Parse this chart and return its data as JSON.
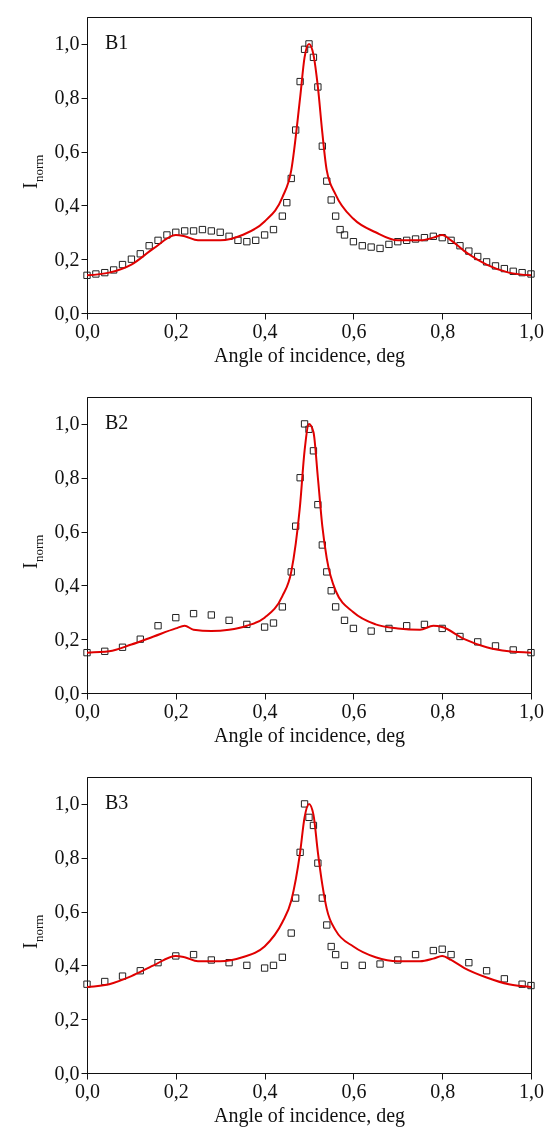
{
  "chart_data": [
    {
      "type": "scatter",
      "xlabel": "Angle of incidence, deg",
      "ylabel": "I$_{norm}$",
      "annotations": [
        "B1"
      ],
      "grid": false,
      "xlim": [
        0,
        1
      ],
      "xticks": [
        {
          "value": 0,
          "label": "0,0"
        },
        {
          "value": 0.2,
          "label": "0,2"
        },
        {
          "value": 0.4,
          "label": "0,4"
        },
        {
          "value": 0.6,
          "label": "0,6"
        },
        {
          "value": 0.8,
          "label": "0,8"
        },
        {
          "value": 1,
          "label": "1,0"
        }
      ],
      "ylim": [
        0,
        1.1
      ],
      "yticks": [
        {
          "value": 0,
          "label": "0,0"
        },
        {
          "value": 0.2,
          "label": "0,2"
        },
        {
          "value": 0.4,
          "label": "0,4"
        },
        {
          "value": 0.6,
          "label": "0,6"
        },
        {
          "value": 0.8,
          "label": "0,8"
        },
        {
          "value": 1,
          "label": "1,0"
        }
      ],
      "series": [
        {
          "marker": "square",
          "color": "#222222",
          "x": [
            0,
            0.02,
            0.04,
            0.06,
            0.08,
            0.1,
            0.12,
            0.14,
            0.16,
            0.18,
            0.2,
            0.22,
            0.24,
            0.26,
            0.28,
            0.3,
            0.32,
            0.34,
            0.36,
            0.38,
            0.4,
            0.42,
            0.44,
            0.45,
            0.46,
            0.47,
            0.48,
            0.49,
            0.5,
            0.51,
            0.52,
            0.53,
            0.54,
            0.55,
            0.56,
            0.57,
            0.58,
            0.6,
            0.62,
            0.64,
            0.66,
            0.68,
            0.7,
            0.72,
            0.74,
            0.76,
            0.78,
            0.8,
            0.82,
            0.84,
            0.86,
            0.88,
            0.9,
            0.92,
            0.94,
            0.96,
            0.98,
            1.0
          ],
          "values": [
            0.14,
            0.145,
            0.15,
            0.16,
            0.18,
            0.2,
            0.22,
            0.25,
            0.27,
            0.29,
            0.3,
            0.305,
            0.305,
            0.31,
            0.305,
            0.3,
            0.285,
            0.27,
            0.265,
            0.27,
            0.29,
            0.31,
            0.36,
            0.41,
            0.5,
            0.68,
            0.86,
            0.98,
            1.0,
            0.95,
            0.84,
            0.62,
            0.49,
            0.42,
            0.36,
            0.31,
            0.29,
            0.265,
            0.25,
            0.245,
            0.24,
            0.255,
            0.265,
            0.27,
            0.275,
            0.28,
            0.285,
            0.28,
            0.27,
            0.25,
            0.23,
            0.21,
            0.19,
            0.175,
            0.165,
            0.155,
            0.15,
            0.145
          ]
        },
        {
          "type": "line",
          "color": "#e00000",
          "x": [
            0,
            0.05,
            0.1,
            0.15,
            0.2,
            0.22,
            0.25,
            0.3,
            0.35,
            0.4,
            0.44,
            0.46,
            0.48,
            0.49,
            0.5,
            0.51,
            0.52,
            0.53,
            0.54,
            0.56,
            0.6,
            0.65,
            0.7,
            0.75,
            0.78,
            0.8,
            0.82,
            0.85,
            0.9,
            0.95,
            1.0
          ],
          "values": [
            0.14,
            0.15,
            0.18,
            0.24,
            0.29,
            0.285,
            0.27,
            0.27,
            0.29,
            0.34,
            0.43,
            0.53,
            0.8,
            0.95,
            1.0,
            0.96,
            0.84,
            0.67,
            0.53,
            0.44,
            0.35,
            0.3,
            0.27,
            0.27,
            0.28,
            0.29,
            0.27,
            0.23,
            0.18,
            0.15,
            0.14
          ]
        }
      ]
    },
    {
      "type": "scatter",
      "xlabel": "Angle of incidence, deg",
      "ylabel": "I$_{norm}$",
      "annotations": [
        "B2"
      ],
      "grid": false,
      "xlim": [
        0,
        1
      ],
      "xticks": [
        {
          "value": 0,
          "label": "0,0"
        },
        {
          "value": 0.2,
          "label": "0,2"
        },
        {
          "value": 0.4,
          "label": "0,4"
        },
        {
          "value": 0.6,
          "label": "0,6"
        },
        {
          "value": 0.8,
          "label": "0,8"
        },
        {
          "value": 1,
          "label": "1,0"
        }
      ],
      "ylim": [
        0,
        1.1
      ],
      "yticks": [
        {
          "value": 0,
          "label": "0,0"
        },
        {
          "value": 0.2,
          "label": "0,2"
        },
        {
          "value": 0.4,
          "label": "0,4"
        },
        {
          "value": 0.6,
          "label": "0,6"
        },
        {
          "value": 0.8,
          "label": "0,8"
        },
        {
          "value": 1,
          "label": "1,0"
        }
      ],
      "series": [
        {
          "marker": "square",
          "color": "#222222",
          "x": [
            0,
            0.04,
            0.08,
            0.12,
            0.16,
            0.2,
            0.24,
            0.28,
            0.32,
            0.36,
            0.4,
            0.42,
            0.44,
            0.46,
            0.47,
            0.48,
            0.49,
            0.5,
            0.51,
            0.52,
            0.53,
            0.54,
            0.55,
            0.56,
            0.58,
            0.6,
            0.64,
            0.68,
            0.72,
            0.76,
            0.8,
            0.84,
            0.88,
            0.92,
            0.96,
            1.0
          ],
          "values": [
            0.15,
            0.155,
            0.17,
            0.2,
            0.25,
            0.28,
            0.295,
            0.29,
            0.27,
            0.255,
            0.245,
            0.26,
            0.32,
            0.45,
            0.62,
            0.8,
            1.0,
            0.98,
            0.9,
            0.7,
            0.55,
            0.45,
            0.38,
            0.32,
            0.27,
            0.24,
            0.23,
            0.24,
            0.25,
            0.255,
            0.24,
            0.21,
            0.19,
            0.175,
            0.16,
            0.15
          ]
        },
        {
          "type": "line",
          "color": "#e00000",
          "x": [
            0,
            0.05,
            0.1,
            0.15,
            0.2,
            0.22,
            0.24,
            0.28,
            0.32,
            0.36,
            0.4,
            0.44,
            0.46,
            0.48,
            0.49,
            0.5,
            0.51,
            0.52,
            0.53,
            0.54,
            0.56,
            0.6,
            0.65,
            0.7,
            0.75,
            0.78,
            0.8,
            0.85,
            0.9,
            0.95,
            1.0
          ],
          "values": [
            0.15,
            0.155,
            0.18,
            0.21,
            0.24,
            0.25,
            0.235,
            0.23,
            0.235,
            0.25,
            0.28,
            0.36,
            0.45,
            0.7,
            0.9,
            1.0,
            0.97,
            0.8,
            0.62,
            0.5,
            0.38,
            0.3,
            0.255,
            0.24,
            0.235,
            0.25,
            0.245,
            0.2,
            0.17,
            0.155,
            0.15
          ]
        }
      ]
    },
    {
      "type": "scatter",
      "xlabel": "Angle of incidence, deg",
      "ylabel": "I$_{norm}$",
      "annotations": [
        "B3"
      ],
      "grid": false,
      "xlim": [
        0,
        1
      ],
      "xticks": [
        {
          "value": 0,
          "label": "0,0"
        },
        {
          "value": 0.2,
          "label": "0,2"
        },
        {
          "value": 0.4,
          "label": "0,4"
        },
        {
          "value": 0.6,
          "label": "0,6"
        },
        {
          "value": 0.8,
          "label": "0,8"
        },
        {
          "value": 1,
          "label": "1,0"
        }
      ],
      "ylim": [
        0,
        1.1
      ],
      "yticks": [
        {
          "value": 0,
          "label": "0,0"
        },
        {
          "value": 0.2,
          "label": "0,2"
        },
        {
          "value": 0.4,
          "label": "0,4"
        },
        {
          "value": 0.6,
          "label": "0,6"
        },
        {
          "value": 0.8,
          "label": "0,8"
        },
        {
          "value": 1,
          "label": "1,0"
        }
      ],
      "series": [
        {
          "marker": "square",
          "color": "#222222",
          "x": [
            0,
            0.04,
            0.08,
            0.12,
            0.16,
            0.2,
            0.24,
            0.28,
            0.32,
            0.36,
            0.4,
            0.42,
            0.44,
            0.46,
            0.47,
            0.48,
            0.49,
            0.5,
            0.51,
            0.52,
            0.53,
            0.54,
            0.55,
            0.56,
            0.58,
            0.62,
            0.66,
            0.7,
            0.74,
            0.78,
            0.8,
            0.82,
            0.86,
            0.9,
            0.94,
            0.98,
            1.0
          ],
          "values": [
            0.33,
            0.34,
            0.36,
            0.38,
            0.41,
            0.435,
            0.44,
            0.42,
            0.41,
            0.4,
            0.39,
            0.4,
            0.43,
            0.52,
            0.65,
            0.82,
            1.0,
            0.95,
            0.92,
            0.78,
            0.65,
            0.55,
            0.47,
            0.44,
            0.4,
            0.4,
            0.405,
            0.42,
            0.44,
            0.455,
            0.46,
            0.44,
            0.41,
            0.38,
            0.35,
            0.33,
            0.325
          ]
        },
        {
          "type": "line",
          "color": "#e00000",
          "x": [
            0,
            0.05,
            0.1,
            0.15,
            0.2,
            0.22,
            0.25,
            0.3,
            0.35,
            0.4,
            0.44,
            0.46,
            0.48,
            0.49,
            0.5,
            0.51,
            0.52,
            0.53,
            0.54,
            0.56,
            0.6,
            0.65,
            0.7,
            0.75,
            0.78,
            0.8,
            0.82,
            0.85,
            0.9,
            0.95,
            1.0
          ],
          "values": [
            0.32,
            0.33,
            0.36,
            0.4,
            0.435,
            0.43,
            0.415,
            0.415,
            0.43,
            0.47,
            0.56,
            0.64,
            0.82,
            0.95,
            1.0,
            0.96,
            0.82,
            0.7,
            0.61,
            0.53,
            0.47,
            0.43,
            0.415,
            0.415,
            0.425,
            0.435,
            0.42,
            0.39,
            0.355,
            0.33,
            0.32
          ]
        }
      ]
    }
  ]
}
